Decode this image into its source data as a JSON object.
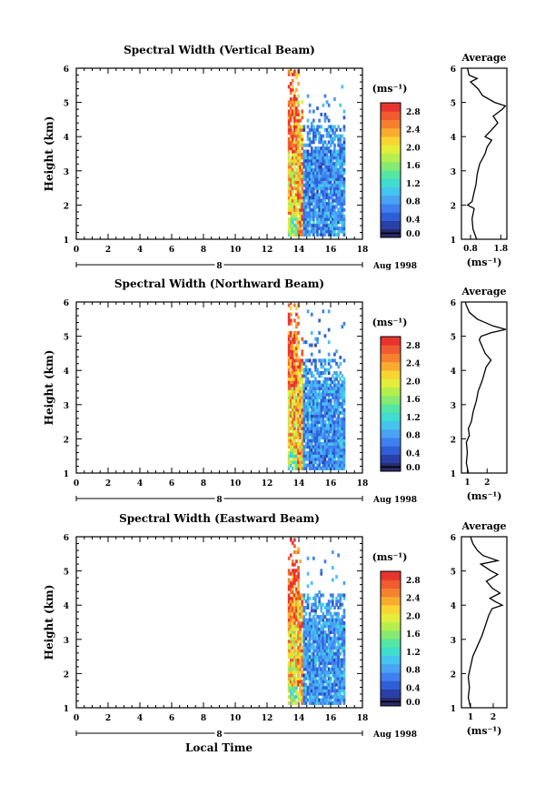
{
  "figure": {
    "xlabel_bottom": "Local Time"
  },
  "colors": {
    "colorbar": [
      "#2a2a6b",
      "#2b3fa8",
      "#2f5fd6",
      "#3f7ff0",
      "#4aa3f3",
      "#45c4ef",
      "#3fdccf",
      "#55e6a4",
      "#86ea72",
      "#b6ee4e",
      "#e3ee3b",
      "#f9d531",
      "#f8ac2f",
      "#f5812e",
      "#f15b30",
      "#e8342f"
    ],
    "axis": "#000000"
  },
  "chart_data": [
    {
      "type": "heatmap",
      "title": "Spectral Width (Vertical Beam)",
      "ylabel": "Height (km)",
      "xlim": [
        0,
        18
      ],
      "ylim": [
        1,
        6
      ],
      "xticks": [
        "0",
        "2",
        "4",
        "6",
        "8",
        "10",
        "12",
        "14",
        "16",
        "18"
      ],
      "yticks": [
        "1",
        "2",
        "3",
        "4",
        "5",
        "6"
      ],
      "date_marker": "8",
      "date_label": "Aug 1998",
      "colorbar": {
        "label": "(ms⁻¹)",
        "ticks": [
          "2.8",
          "2.4",
          "2.0",
          "1.6",
          "1.2",
          "0.8",
          "0.4",
          "0.0"
        ],
        "range": [
          0,
          3.0
        ]
      },
      "data_extent": {
        "time": [
          13.3,
          16.8
        ],
        "height": [
          1.1,
          5.9
        ]
      },
      "average": {
        "title": "Average",
        "xlabel": "(ms⁻¹)",
        "xticks": [
          "0.8",
          "1.8"
        ],
        "xlim": [
          0.5,
          2.0
        ],
        "ylim": [
          1,
          6
        ],
        "yticks": [
          "1",
          "2",
          "3",
          "4",
          "5",
          "6"
        ],
        "profile": [
          [
            1.0,
            1.0
          ],
          [
            1.3,
            0.88
          ],
          [
            1.6,
            0.85
          ],
          [
            1.9,
            0.92
          ],
          [
            2.0,
            0.7
          ],
          [
            2.1,
            0.85
          ],
          [
            2.3,
            0.9
          ],
          [
            2.6,
            0.98
          ],
          [
            2.9,
            1.02
          ],
          [
            3.2,
            1.1
          ],
          [
            3.5,
            1.28
          ],
          [
            3.7,
            1.35
          ],
          [
            3.9,
            1.5
          ],
          [
            4.0,
            1.28
          ],
          [
            4.2,
            1.5
          ],
          [
            4.4,
            1.7
          ],
          [
            4.6,
            1.55
          ],
          [
            4.8,
            1.85
          ],
          [
            4.9,
            1.95
          ],
          [
            5.0,
            1.6
          ],
          [
            5.2,
            1.2
          ],
          [
            5.4,
            1.05
          ],
          [
            5.6,
            0.8
          ],
          [
            5.7,
            1.02
          ],
          [
            5.8,
            0.75
          ],
          [
            6.0,
            0.7
          ]
        ]
      }
    },
    {
      "type": "heatmap",
      "title": "Spectral Width (Northward Beam)",
      "ylabel": "Height (km)",
      "xlim": [
        0,
        18
      ],
      "ylim": [
        1,
        6
      ],
      "xticks": [
        "0",
        "2",
        "4",
        "6",
        "8",
        "10",
        "12",
        "14",
        "16",
        "18"
      ],
      "yticks": [
        "1",
        "2",
        "3",
        "4",
        "5",
        "6"
      ],
      "date_marker": "8",
      "date_label": "Aug 1998",
      "colorbar": {
        "label": "(ms⁻¹)",
        "ticks": [
          "2.8",
          "2.4",
          "2.0",
          "1.6",
          "1.2",
          "0.8",
          "0.4",
          "0.0"
        ],
        "range": [
          0,
          3.0
        ]
      },
      "data_extent": {
        "time": [
          13.3,
          16.8
        ],
        "height": [
          1.1,
          5.9
        ]
      },
      "average": {
        "title": "Average",
        "xlabel": "(ms⁻¹)",
        "xticks": [
          "1",
          "2"
        ],
        "xlim": [
          0.7,
          3.0
        ],
        "ylim": [
          1,
          6
        ],
        "yticks": [
          "1",
          "2",
          "3",
          "4",
          "5",
          "6"
        ],
        "profile": [
          [
            1.0,
            1.05
          ],
          [
            1.3,
            0.95
          ],
          [
            1.6,
            1.0
          ],
          [
            1.9,
            0.95
          ],
          [
            2.1,
            1.1
          ],
          [
            2.3,
            1.05
          ],
          [
            2.5,
            1.2
          ],
          [
            2.8,
            1.3
          ],
          [
            3.1,
            1.45
          ],
          [
            3.4,
            1.55
          ],
          [
            3.7,
            1.75
          ],
          [
            3.9,
            1.85
          ],
          [
            4.1,
            1.95
          ],
          [
            4.3,
            2.2
          ],
          [
            4.5,
            1.9
          ],
          [
            4.7,
            1.75
          ],
          [
            4.9,
            1.6
          ],
          [
            5.0,
            1.7
          ],
          [
            5.1,
            2.2
          ],
          [
            5.2,
            2.95
          ],
          [
            5.3,
            2.3
          ],
          [
            5.5,
            1.5
          ],
          [
            5.7,
            1.1
          ],
          [
            5.9,
            0.95
          ],
          [
            6.0,
            0.9
          ]
        ]
      }
    },
    {
      "type": "heatmap",
      "title": "Spectral Width (Eastward Beam)",
      "ylabel": "Height (km)",
      "xlim": [
        0,
        18
      ],
      "ylim": [
        1,
        6
      ],
      "xticks": [
        "0",
        "2",
        "4",
        "6",
        "8",
        "10",
        "12",
        "14",
        "16",
        "18"
      ],
      "yticks": [
        "1",
        "2",
        "3",
        "4",
        "5",
        "6"
      ],
      "date_marker": "8",
      "date_label": "Aug 1998",
      "colorbar": {
        "label": "(ms⁻¹)",
        "ticks": [
          "2.8",
          "2.4",
          "2.0",
          "1.6",
          "1.2",
          "0.8",
          "0.4",
          "0.0"
        ],
        "range": [
          0,
          3.0
        ]
      },
      "data_extent": {
        "time": [
          13.3,
          16.8
        ],
        "height": [
          1.1,
          5.9
        ]
      },
      "average": {
        "title": "Average",
        "xlabel": "(ms⁻¹)",
        "xticks": [
          "1",
          "2"
        ],
        "xlim": [
          0.6,
          2.6
        ],
        "ylim": [
          1,
          6
        ],
        "yticks": [
          "1",
          "2",
          "3",
          "4",
          "5",
          "6"
        ],
        "profile": [
          [
            1.0,
            1.0
          ],
          [
            1.3,
            0.9
          ],
          [
            1.6,
            0.95
          ],
          [
            1.9,
            0.9
          ],
          [
            2.2,
            1.0
          ],
          [
            2.5,
            1.1
          ],
          [
            2.8,
            1.3
          ],
          [
            3.1,
            1.5
          ],
          [
            3.4,
            1.65
          ],
          [
            3.7,
            1.8
          ],
          [
            3.9,
            1.95
          ],
          [
            4.0,
            2.4
          ],
          [
            4.1,
            2.1
          ],
          [
            4.2,
            1.85
          ],
          [
            4.35,
            2.3
          ],
          [
            4.5,
            1.95
          ],
          [
            4.7,
            1.7
          ],
          [
            4.9,
            2.2
          ],
          [
            5.0,
            1.9
          ],
          [
            5.2,
            1.45
          ],
          [
            5.3,
            2.2
          ],
          [
            5.45,
            1.55
          ],
          [
            5.6,
            1.3
          ],
          [
            5.8,
            1.1
          ],
          [
            6.0,
            1.0
          ]
        ]
      }
    }
  ]
}
